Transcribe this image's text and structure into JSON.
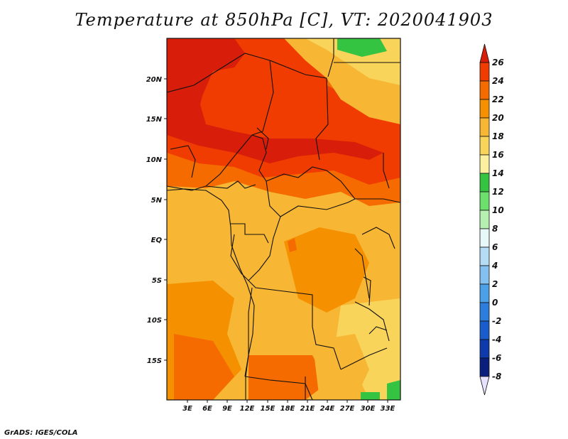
{
  "title": "Temperature at 850hPa [C], VT: 2020041903",
  "credit": "GrADS: IGES/COLA",
  "lat_labels": [
    "20N",
    "15N",
    "10N",
    "5N",
    "EQ",
    "5S",
    "10S",
    "15S"
  ],
  "lon_labels": [
    "3E",
    "6E",
    "9E",
    "12E",
    "15E",
    "18E",
    "21E",
    "24E",
    "27E",
    "30E",
    "33E"
  ],
  "colorbar": {
    "levels": [
      "26",
      "24",
      "22",
      "20",
      "18",
      "16",
      "14",
      "12",
      "10",
      "8",
      "6",
      "4",
      "2",
      "0",
      "-2",
      "-4",
      "-6",
      "-8"
    ],
    "colors": [
      "#d81e0a",
      "#f03c00",
      "#f56b00",
      "#f59100",
      "#f7b633",
      "#f9d45a",
      "#fbf0a0",
      "#35c441",
      "#6ce06c",
      "#b5f0b0",
      "#e8f8f8",
      "#b4dcf5",
      "#84c1f0",
      "#4ba0e8",
      "#2d7ddc",
      "#1a5ccc",
      "#0e3aab",
      "#0a1e7e",
      "#e6e1ff"
    ]
  }
}
